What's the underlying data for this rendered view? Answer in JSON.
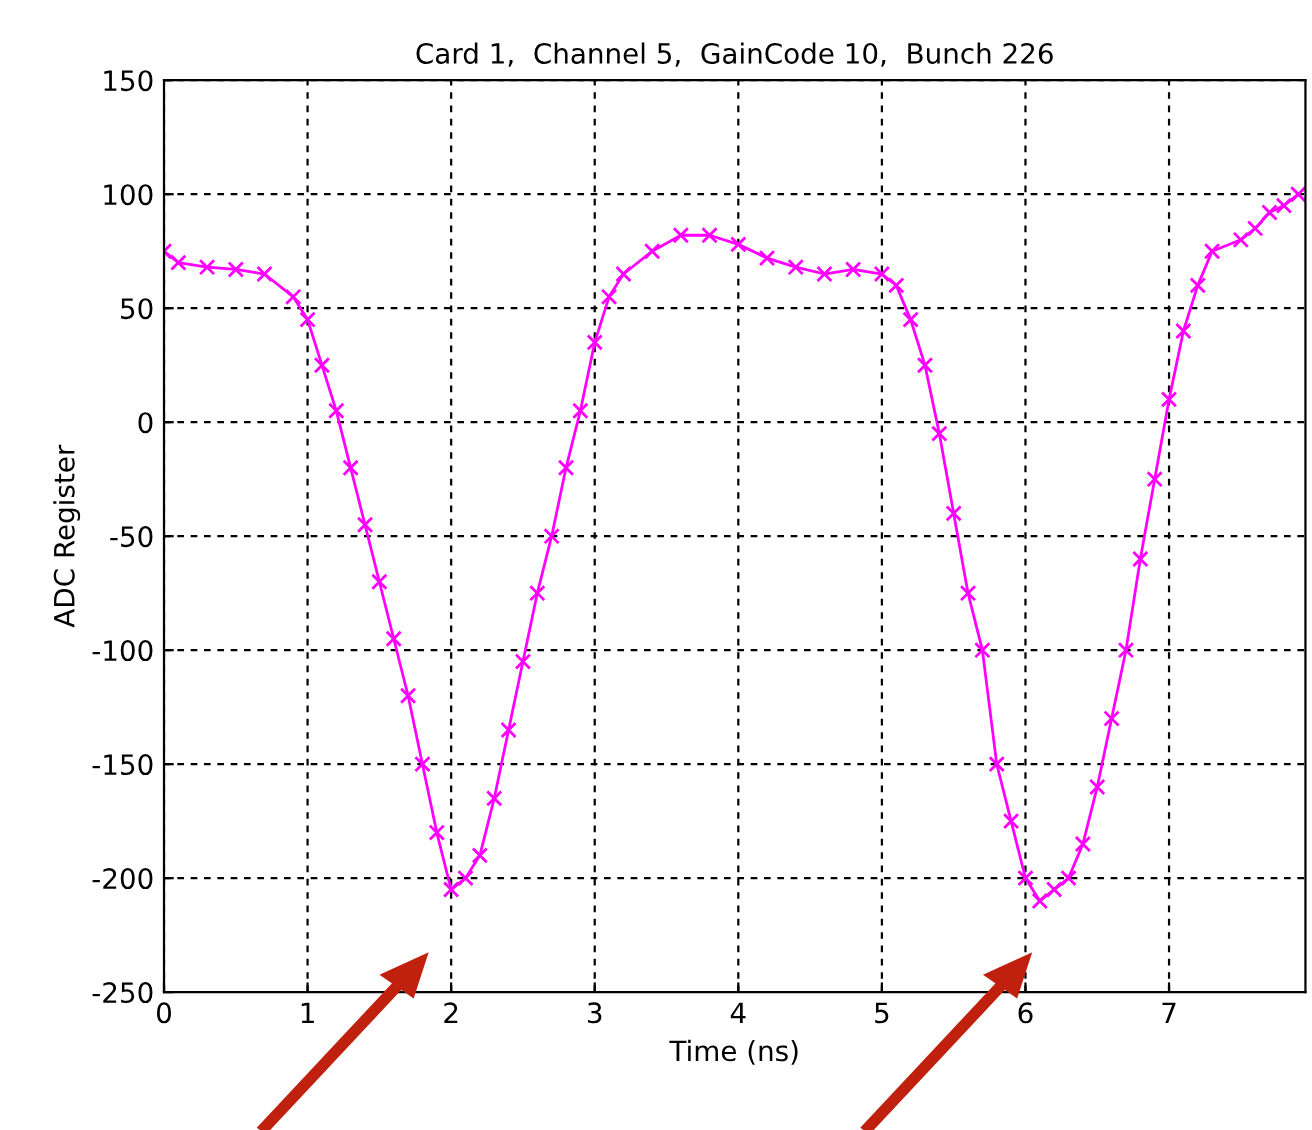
{
  "chart_data": {
    "type": "line",
    "title": "Card 1,  Channel 5,  GainCode 10,  Bunch 226",
    "xlabel": "Time (ns)",
    "ylabel": "ADC Register",
    "x": [
      0,
      0.1,
      0.3,
      0.5,
      0.7,
      0.9,
      1.0,
      1.1,
      1.2,
      1.3,
      1.4,
      1.5,
      1.6,
      1.7,
      1.8,
      1.9,
      2.0,
      2.1,
      2.2,
      2.3,
      2.4,
      2.5,
      2.6,
      2.7,
      2.8,
      2.9,
      3.0,
      3.1,
      3.2,
      3.4,
      3.6,
      3.8,
      4.0,
      4.2,
      4.4,
      4.6,
      4.8,
      5.0,
      5.1,
      5.2,
      5.3,
      5.4,
      5.5,
      5.6,
      5.7,
      5.8,
      5.9,
      6.0,
      6.1,
      6.2,
      6.3,
      6.4,
      6.5,
      6.6,
      6.7,
      6.8,
      6.9,
      7.0,
      7.1,
      7.2,
      7.3,
      7.5,
      7.6,
      7.7,
      7.8,
      7.9
    ],
    "series": [
      {
        "color": "#ff00ff",
        "values": [
          75,
          70,
          68,
          67,
          65,
          55,
          45,
          25,
          5,
          -20,
          -45,
          -70,
          -95,
          -120,
          -150,
          -180,
          -205,
          -200,
          -190,
          -165,
          -135,
          -105,
          -75,
          -50,
          -20,
          5,
          35,
          55,
          65,
          75,
          82,
          82,
          78,
          72,
          68,
          65,
          67,
          65,
          60,
          45,
          25,
          -5,
          -40,
          -75,
          -100,
          -150,
          -175,
          -200,
          -210,
          -205,
          -200,
          -185,
          -160,
          -130,
          -100,
          -60,
          -25,
          10,
          40,
          60,
          75,
          80,
          85,
          92,
          95,
          100
        ]
      }
    ],
    "xlim": [
      0,
      7.95
    ],
    "ylim": [
      -250,
      150
    ],
    "xticks": [
      0,
      1,
      2,
      3,
      4,
      5,
      6,
      7
    ],
    "yticks": [
      -250,
      -200,
      -150,
      -100,
      -50,
      0,
      50,
      100,
      150
    ],
    "grid": true,
    "marker": "cross",
    "line_style": "solid",
    "legend": false
  }
}
